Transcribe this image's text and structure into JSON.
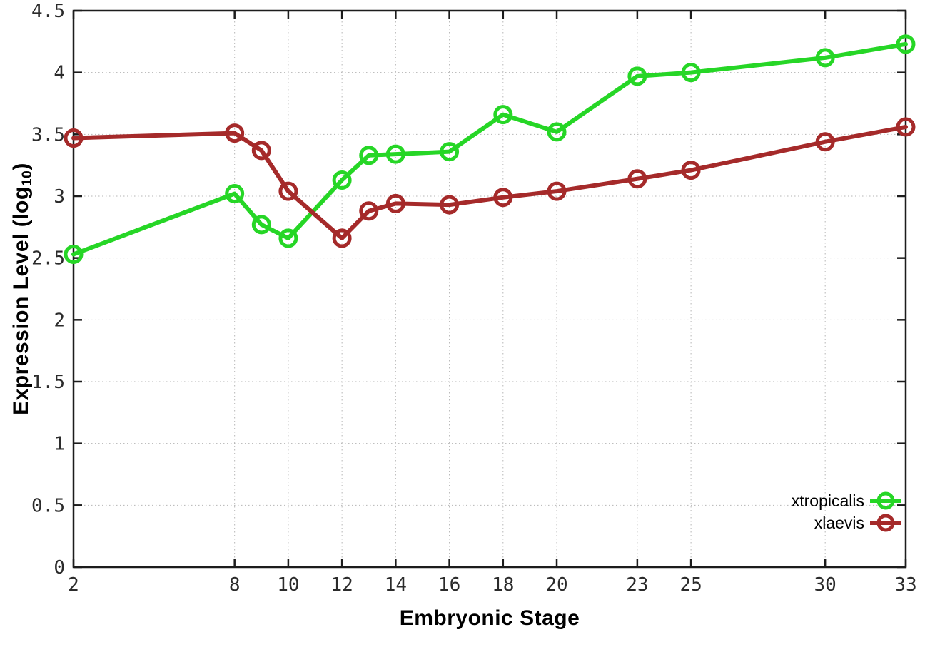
{
  "figure": {
    "xlabel": "Embryonic Stage",
    "ylabel_prefix": "Expression Level (log",
    "ylabel_sub": "10",
    "ylabel_suffix": ")"
  },
  "chart_data": {
    "type": "line",
    "xlabel": "Embryonic Stage",
    "ylabel": "Expression Level (log10)",
    "x": [
      2,
      8,
      9,
      10,
      12,
      13,
      14,
      16,
      18,
      20,
      23,
      25,
      30,
      33
    ],
    "xticks": [
      2,
      8,
      10,
      12,
      14,
      16,
      18,
      20,
      23,
      25,
      30,
      33
    ],
    "yticks": [
      0,
      0.5,
      1,
      1.5,
      2,
      2.5,
      3,
      3.5,
      4,
      4.5
    ],
    "xlim": [
      2,
      33
    ],
    "ylim": [
      0,
      4.5
    ],
    "grid": true,
    "legend_position": "bottom-right",
    "marker": "open-circle",
    "axis_color": "#1c1c1c",
    "grid_color": "#b5b5b5",
    "series": [
      {
        "name": "xtropicalis",
        "color": "#26d626",
        "values": [
          2.53,
          3.02,
          2.77,
          2.66,
          3.13,
          3.33,
          3.34,
          3.36,
          3.66,
          3.52,
          3.97,
          4.0,
          4.12,
          4.23
        ]
      },
      {
        "name": "xlaevis",
        "color": "#a52a2a",
        "values": [
          3.47,
          3.51,
          3.37,
          3.04,
          2.66,
          2.88,
          2.94,
          2.93,
          2.99,
          3.04,
          3.14,
          3.21,
          3.44,
          3.56
        ]
      }
    ]
  }
}
